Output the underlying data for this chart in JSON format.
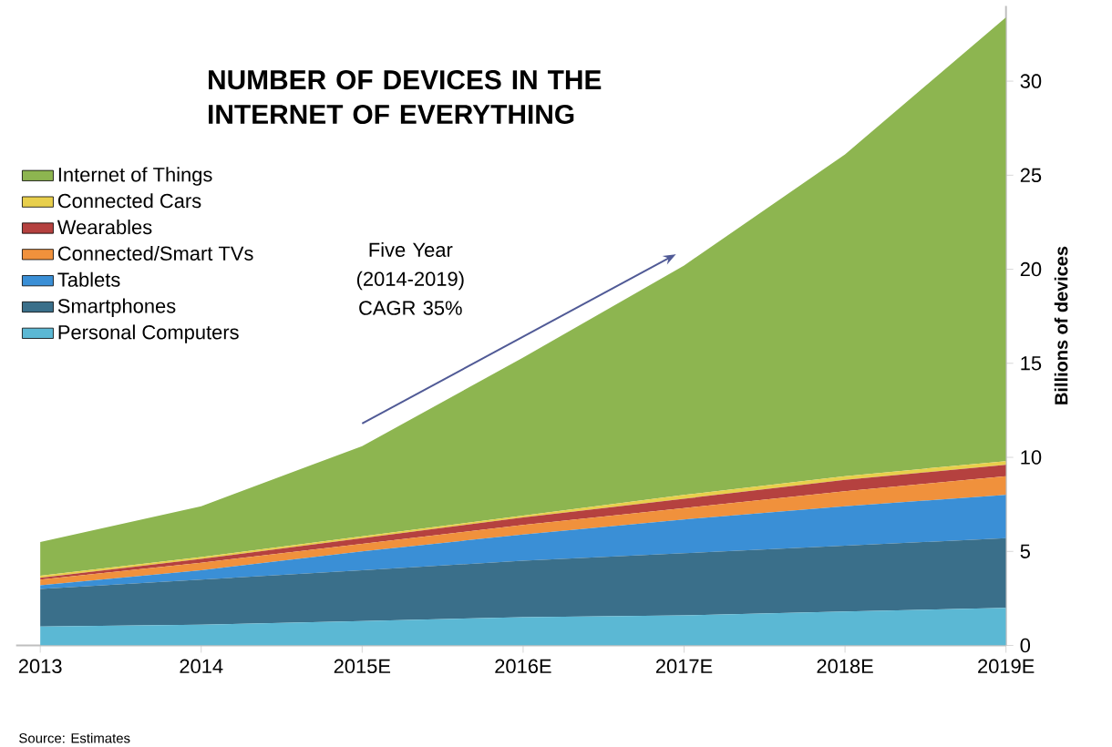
{
  "chart_data": {
    "type": "area",
    "stacked": true,
    "title": "NUMBER OF DEVICES IN THE INTERNET OF EVERYTHING",
    "ylabel": "Billions of devices",
    "categories": [
      "2013",
      "2014",
      "2015E",
      "2016E",
      "2017E",
      "2018E",
      "2019E"
    ],
    "series": [
      {
        "name": "Personal Computers",
        "color": "#5bb8d4",
        "values": [
          1.0,
          1.1,
          1.3,
          1.5,
          1.6,
          1.8,
          2.0
        ]
      },
      {
        "name": "Smartphones",
        "color": "#3a6f8a",
        "values": [
          2.0,
          2.4,
          2.7,
          3.0,
          3.3,
          3.5,
          3.7
        ]
      },
      {
        "name": "Tablets",
        "color": "#3a8fd6",
        "values": [
          0.2,
          0.5,
          1.0,
          1.4,
          1.8,
          2.1,
          2.3
        ]
      },
      {
        "name": "Connected/Smart TVs",
        "color": "#f0913c",
        "values": [
          0.3,
          0.4,
          0.4,
          0.5,
          0.6,
          0.8,
          1.0
        ]
      },
      {
        "name": "Wearables",
        "color": "#b5413f",
        "values": [
          0.1,
          0.2,
          0.3,
          0.4,
          0.5,
          0.6,
          0.6
        ]
      },
      {
        "name": "Connected Cars",
        "color": "#e8cf4c",
        "values": [
          0.1,
          0.1,
          0.1,
          0.1,
          0.2,
          0.2,
          0.2
        ]
      },
      {
        "name": "Internet of Things",
        "color": "#8db550",
        "values": [
          1.8,
          2.7,
          4.8,
          8.4,
          12.2,
          17.1,
          23.6
        ]
      }
    ],
    "ylim": [
      0,
      34
    ],
    "yticks": [
      0,
      5,
      10,
      15,
      20,
      25,
      30
    ],
    "legend": "left",
    "grid": false,
    "annotations": [
      "Five Year (2014-2019) CAGR 35%",
      "Source: Estimates"
    ]
  }
}
